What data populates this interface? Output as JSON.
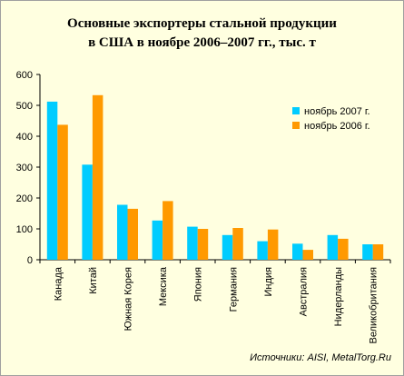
{
  "chart_data": {
    "type": "bar",
    "title_line1": "Основные экспортеры стальной продукции",
    "title_line2": "в США в ноябре 2006–2007 гг., тыс. т",
    "categories": [
      "Канада",
      "Китай",
      "Южная Корея",
      "Мексика",
      "Япония",
      "Германия",
      "Индия",
      "Австралия",
      "Нидерланды",
      "Великобритания"
    ],
    "series": [
      {
        "name": "ноябрь 2007 г.",
        "color": "#00ccff",
        "values": [
          512,
          308,
          178,
          127,
          107,
          80,
          60,
          52,
          80,
          50
        ]
      },
      {
        "name": "ноябрь 2006 г.",
        "color": "#ff9900",
        "values": [
          437,
          533,
          165,
          190,
          100,
          103,
          98,
          32,
          68,
          50
        ]
      }
    ],
    "ylim": [
      0,
      600
    ],
    "yticks": [
      "0",
      "100",
      "200",
      "300",
      "400",
      "500",
      "600"
    ],
    "grid": false,
    "legend_position": "top-right"
  },
  "source": "Источники: AISI, MetalTorg.Ru"
}
